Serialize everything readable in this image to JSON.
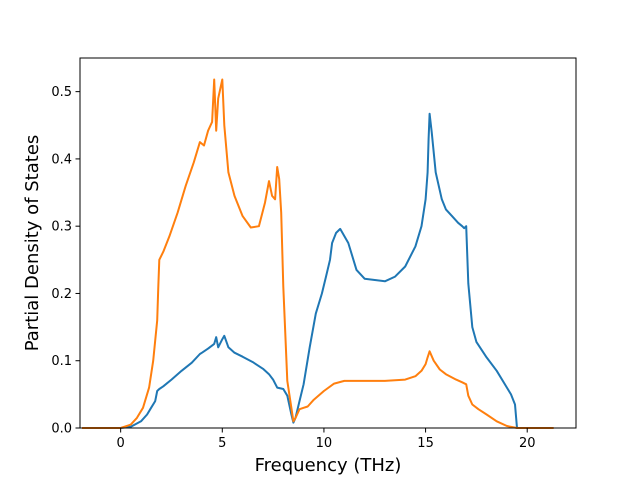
{
  "chart_data": {
    "type": "line",
    "title": "",
    "xlabel": "Frequency (THz)",
    "ylabel": "Partial Density of States",
    "xlim": [
      -2.0,
      22.4
    ],
    "ylim": [
      0.0,
      0.55
    ],
    "xticks": [
      0,
      5,
      10,
      15,
      20
    ],
    "xtick_labels": [
      "0",
      "5",
      "10",
      "15",
      "20"
    ],
    "yticks": [
      0.0,
      0.1,
      0.2,
      0.3,
      0.4,
      0.5
    ],
    "ytick_labels": [
      "0.0",
      "0.1",
      "0.2",
      "0.3",
      "0.4",
      "0.5"
    ],
    "grid": false,
    "legend": "none",
    "series": [
      {
        "color": "#1f77b4",
        "x": [
          -1.9,
          0.0,
          0.5,
          1.0,
          1.3,
          1.5,
          1.7,
          1.8,
          1.9,
          2.1,
          2.5,
          3.0,
          3.5,
          3.9,
          4.0,
          4.3,
          4.6,
          4.7,
          4.8,
          5.0,
          5.1,
          5.3,
          5.6,
          6.0,
          6.5,
          7.0,
          7.3,
          7.5,
          7.7,
          8.0,
          8.2,
          8.4,
          8.5,
          8.6,
          8.8,
          9.0,
          9.3,
          9.6,
          9.9,
          10.1,
          10.3,
          10.4,
          10.6,
          10.8,
          11.2,
          11.6,
          12.0,
          12.5,
          13.0,
          13.5,
          14.0,
          14.5,
          14.8,
          15.0,
          15.1,
          15.15,
          15.2,
          15.3,
          15.5,
          15.8,
          16.0,
          16.3,
          16.6,
          16.8,
          16.9,
          17.0,
          17.1,
          17.3,
          17.5,
          18.0,
          18.5,
          19.0,
          19.2,
          19.4,
          19.5,
          21.3
        ],
        "y": [
          0.0,
          0.0,
          0.002,
          0.01,
          0.02,
          0.03,
          0.04,
          0.055,
          0.058,
          0.062,
          0.072,
          0.085,
          0.097,
          0.11,
          0.112,
          0.118,
          0.125,
          0.135,
          0.12,
          0.132,
          0.137,
          0.12,
          0.112,
          0.106,
          0.098,
          0.088,
          0.08,
          0.072,
          0.06,
          0.058,
          0.048,
          0.02,
          0.008,
          0.015,
          0.04,
          0.065,
          0.12,
          0.17,
          0.2,
          0.225,
          0.25,
          0.275,
          0.29,
          0.296,
          0.275,
          0.235,
          0.222,
          0.22,
          0.218,
          0.225,
          0.24,
          0.27,
          0.3,
          0.34,
          0.38,
          0.43,
          0.467,
          0.44,
          0.38,
          0.34,
          0.325,
          0.315,
          0.305,
          0.3,
          0.297,
          0.3,
          0.215,
          0.15,
          0.128,
          0.105,
          0.085,
          0.06,
          0.05,
          0.035,
          0.0,
          0.0
        ]
      },
      {
        "color": "#ff7f0e",
        "x": [
          -1.9,
          0.0,
          0.5,
          0.8,
          1.1,
          1.4,
          1.6,
          1.8,
          1.85,
          1.9,
          2.1,
          2.4,
          2.8,
          3.2,
          3.6,
          3.9,
          4.1,
          4.3,
          4.5,
          4.6,
          4.7,
          4.8,
          5.0,
          5.1,
          5.3,
          5.6,
          6.0,
          6.4,
          6.8,
          7.1,
          7.3,
          7.45,
          7.6,
          7.7,
          7.8,
          7.9,
          8.0,
          8.2,
          8.5,
          8.6,
          8.8,
          9.0,
          9.2,
          9.5,
          10.0,
          10.5,
          11.0,
          12.0,
          13.0,
          14.0,
          14.5,
          14.8,
          15.0,
          15.1,
          15.2,
          15.4,
          15.7,
          16.0,
          16.5,
          16.8,
          17.0,
          17.1,
          17.3,
          17.6,
          18.0,
          18.5,
          19.0,
          19.5,
          21.3
        ],
        "y": [
          0.0,
          0.0,
          0.005,
          0.015,
          0.03,
          0.06,
          0.1,
          0.16,
          0.21,
          0.25,
          0.262,
          0.285,
          0.32,
          0.36,
          0.395,
          0.425,
          0.42,
          0.442,
          0.455,
          0.518,
          0.442,
          0.49,
          0.518,
          0.45,
          0.38,
          0.345,
          0.315,
          0.298,
          0.3,
          0.335,
          0.367,
          0.345,
          0.34,
          0.388,
          0.37,
          0.32,
          0.21,
          0.07,
          0.01,
          0.015,
          0.028,
          0.03,
          0.032,
          0.042,
          0.055,
          0.066,
          0.07,
          0.07,
          0.07,
          0.072,
          0.077,
          0.085,
          0.095,
          0.105,
          0.114,
          0.1,
          0.087,
          0.08,
          0.072,
          0.068,
          0.065,
          0.048,
          0.035,
          0.028,
          0.02,
          0.01,
          0.003,
          0.0,
          0.0
        ]
      }
    ]
  }
}
